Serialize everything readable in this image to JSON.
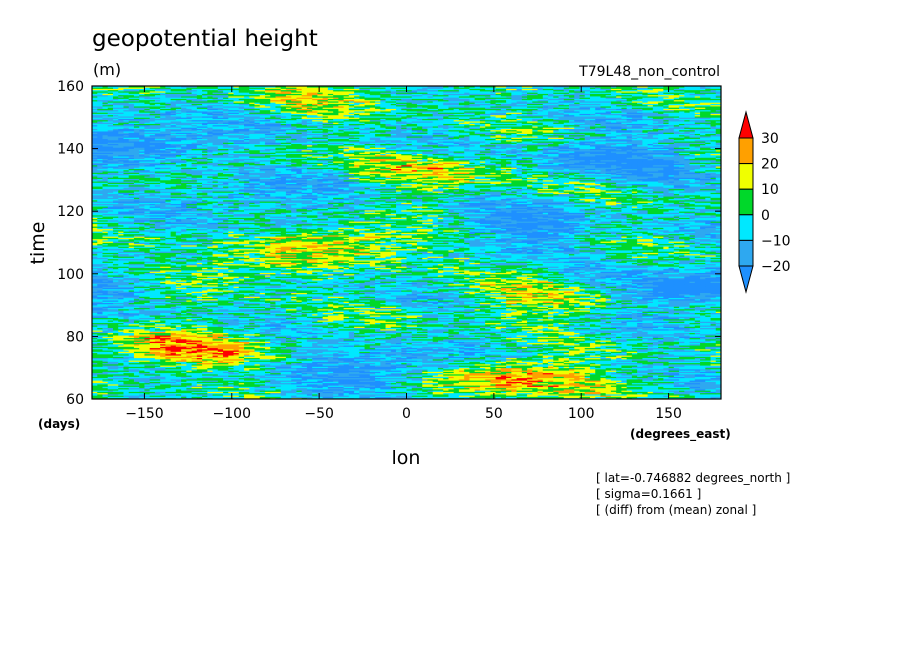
{
  "chart_data": {
    "type": "heatmap",
    "title": "geopotential height",
    "units": "(m)",
    "run_label": "T79L48_non_control",
    "xlabel": "lon",
    "xunits": "(degrees_east)",
    "ylabel": "time",
    "yunits": "(days)",
    "xlim": [
      -180,
      180
    ],
    "ylim": [
      60,
      160
    ],
    "xticks": [
      -150,
      -100,
      -50,
      0,
      50,
      100,
      150
    ],
    "yticks": [
      60,
      80,
      100,
      120,
      140,
      160
    ],
    "colorbar": {
      "levels": [
        -20,
        -10,
        0,
        10,
        20,
        30
      ],
      "colors": [
        "#1e90ff",
        "#2ea8f0",
        "#00e8ff",
        "#00d82a",
        "#f0ff00",
        "#ffa000",
        "#ff0000"
      ],
      "labels": [
        "30",
        "20",
        "10",
        "0",
        "−10",
        "−20"
      ]
    },
    "anomaly_features": [
      {
        "lon": 60,
        "time": 67,
        "value": 30
      },
      {
        "lon": -130,
        "time": 76,
        "value": 28
      },
      {
        "lon": -30,
        "time": 110,
        "value": 25
      },
      {
        "lon": -120,
        "time": 100,
        "value": 22
      },
      {
        "lon": 20,
        "time": 133,
        "value": 20
      },
      {
        "lon": 80,
        "time": 92,
        "value": 18
      },
      {
        "lon": -50,
        "time": 158,
        "value": 15
      },
      {
        "lon": 160,
        "time": 95,
        "value": -28
      },
      {
        "lon": -150,
        "time": 143,
        "value": -25
      },
      {
        "lon": 110,
        "time": 137,
        "value": -24
      },
      {
        "lon": 60,
        "time": 115,
        "value": -20
      },
      {
        "lon": -20,
        "time": 70,
        "value": -22
      },
      {
        "lon": -170,
        "time": 97,
        "value": -26
      },
      {
        "lon": -90,
        "time": 125,
        "value": -15
      }
    ]
  },
  "annotations": [
    "[ lat=-0.746882 degrees_north ]",
    "[ sigma=0.1661 ]",
    "[ (diff) from (mean) zonal ]"
  ]
}
